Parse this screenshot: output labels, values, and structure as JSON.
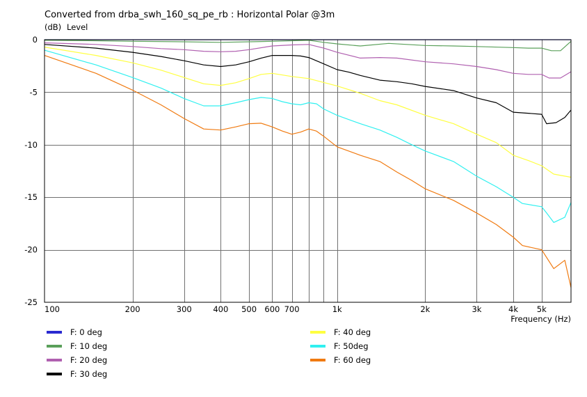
{
  "chart_data": {
    "type": "line",
    "title": "Converted from drba_swh_160_sq_pe_rb : Horizontal Polar @3m",
    "ylabel_unit": "(dB)",
    "ylabel": "Level",
    "xlabel": "Frequency  (Hz)",
    "xscale": "log",
    "xlim": [
      100,
      6300
    ],
    "ylim": [
      -25,
      0
    ],
    "grid": true,
    "x_ticks": [
      {
        "value": 100,
        "label": "100"
      },
      {
        "value": 200,
        "label": "200"
      },
      {
        "value": 300,
        "label": "300"
      },
      {
        "value": 400,
        "label": "400"
      },
      {
        "value": 500,
        "label": "500"
      },
      {
        "value": 600,
        "label": "600"
      },
      {
        "value": 700,
        "label": "700"
      },
      {
        "value": 1000,
        "label": "1k"
      },
      {
        "value": 2000,
        "label": "2k"
      },
      {
        "value": 3000,
        "label": "3k"
      },
      {
        "value": 4000,
        "label": "4k"
      },
      {
        "value": 5000,
        "label": "5k"
      }
    ],
    "y_ticks": [
      {
        "value": 0,
        "label": "0"
      },
      {
        "value": -5,
        "label": "-5"
      },
      {
        "value": -10,
        "label": "-10"
      },
      {
        "value": -15,
        "label": "-15"
      },
      {
        "value": -20,
        "label": "-20"
      },
      {
        "value": -25,
        "label": "-25"
      }
    ],
    "series": [
      {
        "name": "F: 0 deg",
        "color": "#2a2ad0",
        "points": [
          [
            100,
            0
          ],
          [
            6300,
            0
          ]
        ]
      },
      {
        "name": "F: 10 deg",
        "color": "#5aa05a",
        "points": [
          [
            100,
            -0.05
          ],
          [
            150,
            -0.1
          ],
          [
            200,
            -0.15
          ],
          [
            300,
            -0.2
          ],
          [
            400,
            -0.25
          ],
          [
            500,
            -0.2
          ],
          [
            600,
            -0.15
          ],
          [
            700,
            -0.1
          ],
          [
            800,
            -0.05
          ],
          [
            900,
            -0.25
          ],
          [
            1000,
            -0.4
          ],
          [
            1200,
            -0.6
          ],
          [
            1500,
            -0.35
          ],
          [
            2000,
            -0.55
          ],
          [
            2500,
            -0.6
          ],
          [
            3000,
            -0.65
          ],
          [
            4000,
            -0.75
          ],
          [
            4500,
            -0.8
          ],
          [
            5000,
            -0.8
          ],
          [
            5400,
            -1.05
          ],
          [
            5800,
            -1.05
          ],
          [
            6300,
            -0.15
          ]
        ]
      },
      {
        "name": "F: 20 deg",
        "color": "#b060b0",
        "points": [
          [
            100,
            -0.3
          ],
          [
            150,
            -0.45
          ],
          [
            200,
            -0.65
          ],
          [
            250,
            -0.85
          ],
          [
            300,
            -0.95
          ],
          [
            350,
            -1.1
          ],
          [
            400,
            -1.15
          ],
          [
            450,
            -1.1
          ],
          [
            500,
            -0.95
          ],
          [
            600,
            -0.6
          ],
          [
            700,
            -0.5
          ],
          [
            800,
            -0.45
          ],
          [
            900,
            -0.8
          ],
          [
            1000,
            -1.2
          ],
          [
            1200,
            -1.75
          ],
          [
            1400,
            -1.7
          ],
          [
            1600,
            -1.75
          ],
          [
            2000,
            -2.1
          ],
          [
            2500,
            -2.3
          ],
          [
            3000,
            -2.55
          ],
          [
            3500,
            -2.85
          ],
          [
            4000,
            -3.2
          ],
          [
            4500,
            -3.3
          ],
          [
            5000,
            -3.3
          ],
          [
            5300,
            -3.65
          ],
          [
            5800,
            -3.65
          ],
          [
            6300,
            -3.05
          ]
        ]
      },
      {
        "name": "F: 30 deg",
        "color": "#000000",
        "points": [
          [
            100,
            -0.45
          ],
          [
            150,
            -0.8
          ],
          [
            200,
            -1.2
          ],
          [
            250,
            -1.6
          ],
          [
            300,
            -2.0
          ],
          [
            350,
            -2.4
          ],
          [
            400,
            -2.55
          ],
          [
            450,
            -2.4
          ],
          [
            500,
            -2.1
          ],
          [
            550,
            -1.75
          ],
          [
            600,
            -1.5
          ],
          [
            700,
            -1.5
          ],
          [
            750,
            -1.55
          ],
          [
            800,
            -1.7
          ],
          [
            900,
            -2.3
          ],
          [
            1000,
            -2.85
          ],
          [
            1100,
            -3.1
          ],
          [
            1200,
            -3.4
          ],
          [
            1400,
            -3.85
          ],
          [
            1600,
            -4.0
          ],
          [
            1800,
            -4.2
          ],
          [
            2000,
            -4.45
          ],
          [
            2500,
            -4.85
          ],
          [
            3000,
            -5.55
          ],
          [
            3500,
            -6.0
          ],
          [
            4000,
            -6.9
          ],
          [
            4500,
            -7.0
          ],
          [
            5000,
            -7.1
          ],
          [
            5200,
            -8.0
          ],
          [
            5600,
            -7.9
          ],
          [
            6000,
            -7.4
          ],
          [
            6300,
            -6.7
          ]
        ]
      },
      {
        "name": "F: 40 deg",
        "color": "#ffff40",
        "points": [
          [
            100,
            -0.7
          ],
          [
            150,
            -1.5
          ],
          [
            200,
            -2.2
          ],
          [
            250,
            -2.9
          ],
          [
            300,
            -3.6
          ],
          [
            350,
            -4.2
          ],
          [
            400,
            -4.35
          ],
          [
            450,
            -4.1
          ],
          [
            500,
            -3.7
          ],
          [
            550,
            -3.3
          ],
          [
            600,
            -3.2
          ],
          [
            700,
            -3.5
          ],
          [
            800,
            -3.7
          ],
          [
            1000,
            -4.4
          ],
          [
            1200,
            -5.1
          ],
          [
            1400,
            -5.8
          ],
          [
            1600,
            -6.2
          ],
          [
            2000,
            -7.2
          ],
          [
            2500,
            -8.0
          ],
          [
            3000,
            -9.0
          ],
          [
            3500,
            -9.8
          ],
          [
            4000,
            -11.0
          ],
          [
            4500,
            -11.5
          ],
          [
            5000,
            -12.0
          ],
          [
            5500,
            -12.8
          ],
          [
            6300,
            -13.1
          ]
        ]
      },
      {
        "name": "F: 50deg",
        "color": "#30f0f0",
        "points": [
          [
            100,
            -1.0
          ],
          [
            150,
            -2.4
          ],
          [
            200,
            -3.6
          ],
          [
            250,
            -4.6
          ],
          [
            300,
            -5.6
          ],
          [
            350,
            -6.3
          ],
          [
            400,
            -6.3
          ],
          [
            450,
            -6.0
          ],
          [
            500,
            -5.7
          ],
          [
            550,
            -5.5
          ],
          [
            600,
            -5.6
          ],
          [
            650,
            -5.9
          ],
          [
            700,
            -6.1
          ],
          [
            750,
            -6.2
          ],
          [
            800,
            -6.0
          ],
          [
            850,
            -6.1
          ],
          [
            900,
            -6.6
          ],
          [
            1000,
            -7.2
          ],
          [
            1200,
            -8.0
          ],
          [
            1400,
            -8.6
          ],
          [
            1600,
            -9.3
          ],
          [
            1800,
            -10.0
          ],
          [
            2000,
            -10.6
          ],
          [
            2500,
            -11.6
          ],
          [
            3000,
            -13.0
          ],
          [
            3500,
            -14.0
          ],
          [
            4000,
            -15.0
          ],
          [
            4300,
            -15.6
          ],
          [
            5000,
            -15.9
          ],
          [
            5200,
            -16.5
          ],
          [
            5500,
            -17.4
          ],
          [
            6000,
            -16.9
          ],
          [
            6300,
            -15.5
          ]
        ]
      },
      {
        "name": "F: 60 deg",
        "color": "#f07a10",
        "points": [
          [
            100,
            -1.5
          ],
          [
            150,
            -3.2
          ],
          [
            200,
            -4.8
          ],
          [
            250,
            -6.2
          ],
          [
            300,
            -7.5
          ],
          [
            350,
            -8.5
          ],
          [
            400,
            -8.6
          ],
          [
            450,
            -8.3
          ],
          [
            500,
            -8.0
          ],
          [
            550,
            -7.95
          ],
          [
            600,
            -8.3
          ],
          [
            650,
            -8.7
          ],
          [
            700,
            -9.0
          ],
          [
            750,
            -8.8
          ],
          [
            800,
            -8.5
          ],
          [
            850,
            -8.7
          ],
          [
            900,
            -9.2
          ],
          [
            1000,
            -10.2
          ],
          [
            1200,
            -11.0
          ],
          [
            1400,
            -11.6
          ],
          [
            1600,
            -12.6
          ],
          [
            1800,
            -13.4
          ],
          [
            2000,
            -14.2
          ],
          [
            2500,
            -15.3
          ],
          [
            3000,
            -16.5
          ],
          [
            3500,
            -17.6
          ],
          [
            4000,
            -18.8
          ],
          [
            4300,
            -19.6
          ],
          [
            5000,
            -20.0
          ],
          [
            5500,
            -21.8
          ],
          [
            6000,
            -21.0
          ],
          [
            6300,
            -23.6
          ]
        ]
      }
    ]
  },
  "legend": {
    "items": [
      {
        "label": "F: 0 deg",
        "color": "#2a2ad0",
        "column": 0,
        "row": 0
      },
      {
        "label": "F: 10 deg",
        "color": "#5aa05a",
        "column": 0,
        "row": 1
      },
      {
        "label": "F: 20 deg",
        "color": "#b060b0",
        "column": 0,
        "row": 2
      },
      {
        "label": "F: 30 deg",
        "color": "#000000",
        "column": 0,
        "row": 3
      },
      {
        "label": "F: 40 deg",
        "color": "#ffff40",
        "column": 1,
        "row": 0
      },
      {
        "label": "F: 50deg",
        "color": "#30f0f0",
        "column": 1,
        "row": 1
      },
      {
        "label": "F: 60 deg",
        "color": "#f07a10",
        "column": 1,
        "row": 2
      }
    ]
  }
}
